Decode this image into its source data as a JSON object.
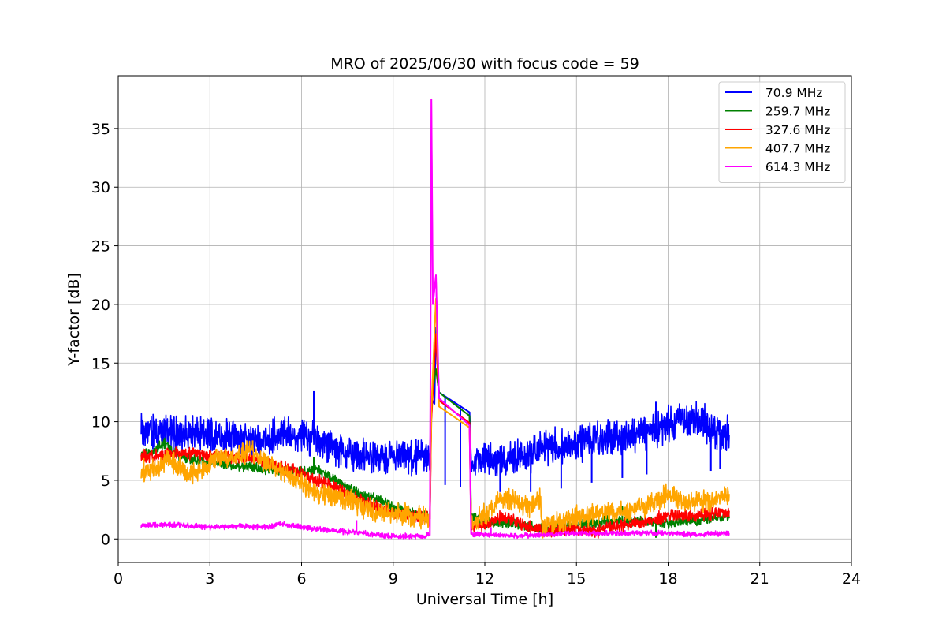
{
  "chart_data": {
    "type": "line",
    "title": "MRO of 2025/06/30 with focus code = 59",
    "xlabel": "Universal Time [h]",
    "ylabel": "Y-factor [dB]",
    "xlim": [
      0,
      24
    ],
    "ylim": [
      -2,
      39.5
    ],
    "xticks": [
      0,
      3,
      6,
      9,
      12,
      15,
      18,
      21,
      24
    ],
    "yticks": [
      0,
      5,
      10,
      15,
      20,
      25,
      30,
      35
    ],
    "grid": true,
    "legend_position": "top-right",
    "series": [
      {
        "name": " 70.9 MHz",
        "color": "#0000ff",
        "noise": 1.6,
        "points": [
          [
            0.75,
            9.3
          ],
          [
            1.5,
            9.0
          ],
          [
            2.5,
            8.9
          ],
          [
            3.5,
            8.7
          ],
          [
            4.5,
            8.4
          ],
          [
            5.5,
            8.9
          ],
          [
            6.0,
            9.0
          ],
          [
            6.5,
            8.3
          ],
          [
            7.0,
            7.8
          ],
          [
            7.5,
            7.3
          ],
          [
            8.0,
            7.0
          ],
          [
            8.5,
            6.9
          ],
          [
            9.0,
            6.9
          ],
          [
            9.5,
            7.0
          ],
          [
            10.0,
            6.9
          ],
          [
            10.2,
            6.9
          ],
          [
            10.25,
            12.0
          ],
          [
            10.35,
            11.5
          ],
          [
            10.4,
            18.0
          ],
          [
            10.5,
            12.5
          ],
          [
            11.5,
            10.8
          ],
          [
            11.55,
            6.5
          ],
          [
            12.0,
            6.8
          ],
          [
            12.5,
            6.9
          ],
          [
            13.0,
            6.9
          ],
          [
            13.5,
            7.1
          ],
          [
            14.0,
            7.8
          ],
          [
            15.0,
            8.1
          ],
          [
            16.0,
            8.6
          ],
          [
            17.0,
            9.0
          ],
          [
            17.5,
            9.3
          ],
          [
            18.0,
            9.8
          ],
          [
            18.5,
            10.1
          ],
          [
            19.0,
            10.3
          ],
          [
            19.5,
            9.2
          ],
          [
            20.0,
            8.9
          ]
        ],
        "spikes": [
          [
            6.4,
            12.6
          ],
          [
            17.6,
            11.7
          ],
          [
            18.8,
            10.9
          ]
        ],
        "dips": [
          [
            9.5,
            5.5
          ],
          [
            10.7,
            4.6
          ],
          [
            11.2,
            4.4
          ],
          [
            12.5,
            4.0
          ],
          [
            13.5,
            4.0
          ],
          [
            14.5,
            4.3
          ],
          [
            15.5,
            4.8
          ],
          [
            16.5,
            5.2
          ],
          [
            17.3,
            5.5
          ],
          [
            19.4,
            5.8
          ],
          [
            19.7,
            6.0
          ]
        ]
      },
      {
        "name": " 259.7 MHz",
        "color": "#008000",
        "noise": 0.5,
        "points": [
          [
            0.75,
            7.2
          ],
          [
            1.2,
            7.6
          ],
          [
            1.5,
            8.2
          ],
          [
            2.0,
            7.0
          ],
          [
            3.0,
            6.5
          ],
          [
            4.0,
            6.2
          ],
          [
            5.0,
            6.0
          ],
          [
            6.0,
            5.7
          ],
          [
            6.5,
            6.0
          ],
          [
            7.0,
            5.2
          ],
          [
            7.5,
            4.4
          ],
          [
            8.0,
            3.7
          ],
          [
            8.5,
            3.3
          ],
          [
            9.0,
            2.7
          ],
          [
            9.5,
            2.3
          ],
          [
            10.0,
            2.0
          ],
          [
            10.2,
            1.9
          ],
          [
            10.25,
            11.8
          ],
          [
            10.4,
            14.5
          ],
          [
            10.5,
            12.5
          ],
          [
            11.5,
            10.5
          ],
          [
            11.55,
            1.8
          ],
          [
            12.0,
            1.5
          ],
          [
            13.0,
            1.3
          ],
          [
            14.0,
            0.9
          ],
          [
            15.0,
            1.2
          ],
          [
            16.0,
            1.5
          ],
          [
            17.0,
            1.5
          ],
          [
            18.0,
            1.4
          ],
          [
            19.0,
            1.6
          ],
          [
            20.0,
            2.0
          ]
        ],
        "spikes": [
          [
            6.4,
            7.0
          ],
          [
            16.5,
            2.8
          ]
        ],
        "dips": [
          [
            17.6,
            0.1
          ]
        ]
      },
      {
        "name": " 327.6 MHz",
        "color": "#ff0000",
        "noise": 0.6,
        "points": [
          [
            0.75,
            7.0
          ],
          [
            1.5,
            7.2
          ],
          [
            2.5,
            7.3
          ],
          [
            3.5,
            7.0
          ],
          [
            4.5,
            6.8
          ],
          [
            5.5,
            6.0
          ],
          [
            6.5,
            5.0
          ],
          [
            7.0,
            4.5
          ],
          [
            7.5,
            3.8
          ],
          [
            8.0,
            3.2
          ],
          [
            8.5,
            2.7
          ],
          [
            9.0,
            2.2
          ],
          [
            9.5,
            2.0
          ],
          [
            10.0,
            1.8
          ],
          [
            10.2,
            1.7
          ],
          [
            10.25,
            10.2
          ],
          [
            10.4,
            17.5
          ],
          [
            10.5,
            11.8
          ],
          [
            11.5,
            9.9
          ],
          [
            11.55,
            1.0
          ],
          [
            12.0,
            1.2
          ],
          [
            12.5,
            1.8
          ],
          [
            13.0,
            1.5
          ],
          [
            13.5,
            1.0
          ],
          [
            14.0,
            0.8
          ],
          [
            15.0,
            0.9
          ],
          [
            15.6,
            0.6
          ],
          [
            16.0,
            1.0
          ],
          [
            17.0,
            1.3
          ],
          [
            17.5,
            1.6
          ],
          [
            18.0,
            2.0
          ],
          [
            19.0,
            2.0
          ],
          [
            20.0,
            2.4
          ]
        ],
        "spikes": [],
        "dips": [
          [
            15.6,
            0.1
          ]
        ]
      },
      {
        "name": " 407.7 MHz",
        "color": "#ffa500",
        "noise": 1.0,
        "points": [
          [
            0.75,
            5.8
          ],
          [
            1.2,
            6.0
          ],
          [
            1.6,
            6.8
          ],
          [
            2.0,
            6.0
          ],
          [
            2.5,
            5.5
          ],
          [
            3.0,
            6.5
          ],
          [
            3.5,
            7.0
          ],
          [
            4.0,
            7.2
          ],
          [
            4.4,
            7.5
          ],
          [
            5.0,
            6.3
          ],
          [
            5.5,
            5.5
          ],
          [
            6.0,
            4.8
          ],
          [
            6.5,
            3.8
          ],
          [
            7.0,
            3.6
          ],
          [
            7.5,
            3.4
          ],
          [
            8.0,
            2.8
          ],
          [
            8.5,
            2.3
          ],
          [
            9.0,
            2.1
          ],
          [
            9.5,
            2.0
          ],
          [
            10.0,
            1.8
          ],
          [
            10.2,
            1.8
          ],
          [
            10.25,
            11.0
          ],
          [
            10.4,
            20.5
          ],
          [
            10.5,
            11.3
          ],
          [
            11.5,
            9.5
          ],
          [
            11.55,
            1.3
          ],
          [
            12.0,
            2.0
          ],
          [
            12.3,
            2.8
          ],
          [
            12.6,
            3.6
          ],
          [
            13.0,
            3.2
          ],
          [
            13.5,
            2.7
          ],
          [
            13.8,
            3.5
          ],
          [
            13.9,
            1.0
          ],
          [
            14.5,
            1.4
          ],
          [
            15.0,
            1.9
          ],
          [
            15.5,
            2.1
          ],
          [
            16.0,
            2.2
          ],
          [
            16.5,
            2.5
          ],
          [
            17.0,
            2.6
          ],
          [
            17.5,
            3.0
          ],
          [
            18.0,
            3.8
          ],
          [
            18.5,
            3.0
          ],
          [
            19.0,
            3.3
          ],
          [
            19.5,
            3.3
          ],
          [
            20.0,
            3.9
          ]
        ],
        "spikes": [
          [
            4.4,
            8.4
          ]
        ],
        "dips": []
      },
      {
        "name": " 614.3 MHz",
        "color": "#ff00ff",
        "noise": 0.25,
        "points": [
          [
            0.75,
            1.2
          ],
          [
            2.0,
            1.2
          ],
          [
            3.0,
            1.0
          ],
          [
            4.0,
            1.1
          ],
          [
            5.0,
            1.0
          ],
          [
            5.3,
            1.3
          ],
          [
            6.0,
            1.0
          ],
          [
            7.0,
            0.7
          ],
          [
            8.0,
            0.5
          ],
          [
            9.0,
            0.2
          ],
          [
            10.0,
            0.3
          ],
          [
            10.2,
            0.3
          ],
          [
            10.25,
            37.5
          ],
          [
            10.3,
            20.0
          ],
          [
            10.4,
            22.5
          ],
          [
            10.5,
            12.0
          ],
          [
            11.5,
            9.7
          ],
          [
            11.55,
            0.4
          ],
          [
            12.5,
            0.3
          ],
          [
            13.5,
            0.3
          ],
          [
            15.0,
            0.5
          ],
          [
            16.0,
            0.5
          ],
          [
            17.0,
            0.5
          ],
          [
            18.0,
            0.5
          ],
          [
            19.0,
            0.4
          ],
          [
            20.0,
            0.5
          ]
        ],
        "spikes": [
          [
            7.8,
            1.6
          ],
          [
            12.2,
            1.0
          ]
        ],
        "dips": []
      }
    ]
  }
}
